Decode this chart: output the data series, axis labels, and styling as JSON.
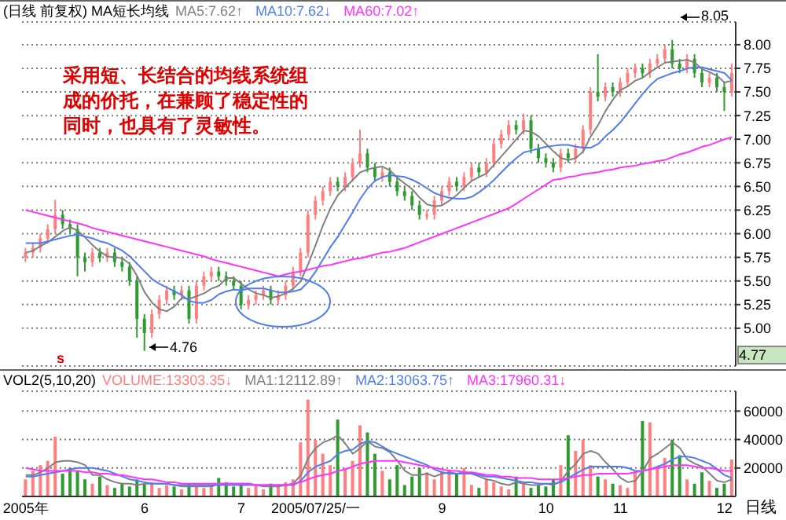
{
  "chart_data": [
    {
      "type": "candlestick",
      "title": "(日线 前复权) MA短长均线",
      "legend": "top",
      "grid": "y",
      "tick_labels": "y",
      "categories": [
        null,
        null,
        null,
        null,
        null,
        null,
        null,
        null,
        null,
        null,
        null,
        null,
        null,
        null,
        null,
        null,
        null,
        null,
        null,
        null,
        null,
        null,
        null,
        null,
        null,
        null,
        null,
        null,
        null,
        null,
        null,
        null,
        null,
        null,
        null,
        null,
        null,
        null,
        null,
        null,
        null,
        null,
        null,
        null,
        null,
        null,
        null,
        null,
        null,
        null,
        null,
        null,
        null,
        null,
        null,
        null,
        null,
        null,
        null,
        null,
        null,
        null,
        null,
        null,
        null,
        null,
        null,
        null,
        null,
        null,
        null,
        null,
        null,
        null,
        null,
        null,
        null,
        null,
        null,
        null,
        null,
        null,
        null,
        null,
        null,
        null,
        null,
        null,
        null,
        null,
        null,
        null,
        null,
        null,
        null,
        null
      ],
      "ohlc": [
        [
          5.75,
          5.85,
          5.7,
          5.8
        ],
        [
          5.8,
          5.9,
          5.75,
          5.85
        ],
        [
          5.85,
          6.0,
          5.8,
          5.95
        ],
        [
          5.95,
          6.1,
          5.9,
          6.05
        ],
        [
          6.05,
          6.36,
          6.0,
          6.2
        ],
        [
          6.2,
          6.25,
          6.05,
          6.1
        ],
        [
          6.1,
          6.15,
          6.0,
          6.05
        ],
        [
          6.05,
          6.1,
          5.55,
          5.75
        ],
        [
          5.75,
          5.8,
          5.6,
          5.7
        ],
        [
          5.7,
          5.85,
          5.65,
          5.8
        ],
        [
          5.8,
          5.85,
          5.7,
          5.75
        ],
        [
          5.75,
          5.85,
          5.7,
          5.8
        ],
        [
          5.8,
          5.85,
          5.65,
          5.7
        ],
        [
          5.7,
          5.75,
          5.6,
          5.65
        ],
        [
          5.65,
          5.7,
          5.45,
          5.5
        ],
        [
          5.5,
          5.55,
          4.9,
          5.1
        ],
        [
          5.1,
          5.15,
          4.76,
          4.95
        ],
        [
          4.95,
          5.2,
          4.9,
          5.15
        ],
        [
          5.15,
          5.35,
          5.1,
          5.3
        ],
        [
          5.3,
          5.45,
          5.25,
          5.4
        ],
        [
          5.4,
          5.45,
          5.3,
          5.35
        ],
        [
          5.35,
          5.45,
          5.3,
          5.4
        ],
        [
          5.4,
          5.45,
          5.05,
          5.1
        ],
        [
          5.1,
          5.5,
          5.05,
          5.45
        ],
        [
          5.45,
          5.6,
          5.4,
          5.55
        ],
        [
          5.55,
          5.65,
          5.5,
          5.6
        ],
        [
          5.6,
          5.65,
          5.5,
          5.55
        ],
        [
          5.55,
          5.6,
          5.45,
          5.5
        ],
        [
          5.5,
          5.55,
          5.4,
          5.45
        ],
        [
          5.45,
          5.5,
          5.2,
          5.25
        ],
        [
          5.25,
          5.35,
          5.2,
          5.3
        ],
        [
          5.3,
          5.4,
          5.25,
          5.35
        ],
        [
          5.35,
          5.45,
          5.3,
          5.4
        ],
        [
          5.4,
          5.45,
          5.25,
          5.3
        ],
        [
          5.3,
          5.4,
          5.25,
          5.35
        ],
        [
          5.35,
          5.5,
          5.3,
          5.45
        ],
        [
          5.45,
          5.65,
          5.4,
          5.6
        ],
        [
          5.6,
          5.85,
          5.55,
          5.8
        ],
        [
          5.8,
          6.25,
          5.75,
          6.2
        ],
        [
          6.2,
          6.4,
          6.15,
          6.35
        ],
        [
          6.35,
          6.5,
          6.3,
          6.45
        ],
        [
          6.45,
          6.6,
          6.4,
          6.55
        ],
        [
          6.55,
          6.6,
          6.45,
          6.5
        ],
        [
          6.5,
          6.65,
          6.45,
          6.6
        ],
        [
          6.6,
          6.8,
          6.55,
          6.75
        ],
        [
          6.75,
          7.1,
          6.7,
          6.85
        ],
        [
          6.85,
          6.9,
          6.65,
          6.7
        ],
        [
          6.7,
          6.75,
          6.55,
          6.6
        ],
        [
          6.6,
          6.7,
          6.55,
          6.65
        ],
        [
          6.65,
          6.7,
          6.5,
          6.55
        ],
        [
          6.55,
          6.6,
          6.4,
          6.45
        ],
        [
          6.45,
          6.5,
          6.35,
          6.4
        ],
        [
          6.4,
          6.45,
          6.25,
          6.3
        ],
        [
          6.3,
          6.35,
          6.15,
          6.2
        ],
        [
          6.2,
          6.25,
          6.15,
          6.2
        ],
        [
          6.2,
          6.4,
          6.15,
          6.35
        ],
        [
          6.35,
          6.5,
          6.3,
          6.45
        ],
        [
          6.45,
          6.6,
          6.4,
          6.55
        ],
        [
          6.55,
          6.6,
          6.45,
          6.5
        ],
        [
          6.5,
          6.65,
          6.45,
          6.6
        ],
        [
          6.6,
          6.75,
          6.55,
          6.7
        ],
        [
          6.7,
          6.75,
          6.6,
          6.65
        ],
        [
          6.65,
          6.8,
          6.6,
          6.75
        ],
        [
          6.75,
          7.0,
          6.7,
          6.95
        ],
        [
          6.95,
          7.1,
          6.9,
          7.05
        ],
        [
          7.05,
          7.2,
          7.0,
          7.15
        ],
        [
          7.15,
          7.2,
          7.05,
          7.1
        ],
        [
          7.1,
          7.27,
          7.05,
          7.2
        ],
        [
          7.2,
          7.25,
          6.85,
          6.9
        ],
        [
          6.9,
          6.95,
          6.75,
          6.8
        ],
        [
          6.8,
          6.85,
          6.7,
          6.75
        ],
        [
          6.75,
          6.8,
          6.65,
          6.7
        ],
        [
          6.7,
          6.9,
          6.65,
          6.85
        ],
        [
          6.85,
          6.9,
          6.75,
          6.8
        ],
        [
          6.8,
          6.95,
          6.75,
          6.9
        ],
        [
          6.9,
          7.15,
          6.85,
          7.1
        ],
        [
          7.1,
          7.55,
          7.05,
          7.5
        ],
        [
          7.5,
          7.9,
          7.4,
          7.45
        ],
        [
          7.45,
          7.6,
          7.4,
          7.55
        ],
        [
          7.55,
          7.6,
          7.45,
          7.5
        ],
        [
          7.5,
          7.65,
          7.45,
          7.6
        ],
        [
          7.6,
          7.75,
          7.55,
          7.7
        ],
        [
          7.7,
          7.8,
          7.65,
          7.75
        ],
        [
          7.75,
          7.8,
          7.65,
          7.7
        ],
        [
          7.7,
          7.85,
          7.65,
          7.8
        ],
        [
          7.8,
          7.9,
          7.75,
          7.85
        ],
        [
          7.85,
          8.0,
          7.8,
          7.95
        ],
        [
          7.95,
          8.05,
          7.75,
          7.8
        ],
        [
          7.8,
          7.85,
          7.7,
          7.75
        ],
        [
          7.75,
          7.9,
          7.7,
          7.85
        ],
        [
          7.85,
          7.9,
          7.65,
          7.7
        ],
        [
          7.7,
          7.75,
          7.55,
          7.6
        ],
        [
          7.6,
          7.7,
          7.55,
          7.65
        ],
        [
          7.65,
          7.7,
          7.5,
          7.55
        ],
        [
          7.55,
          7.6,
          7.3,
          7.5
        ],
        [
          7.5,
          7.8,
          7.45,
          7.7
        ]
      ],
      "colors": [
        "#ff7f7f",
        "#ff7f7f",
        "#ff7f7f",
        "#ff7f7f",
        "#ff7f7f",
        "#2e9b2e",
        "#2e9b2e",
        "#2e9b2e",
        "#2e9b2e",
        "#ff7f7f",
        "#2e9b2e",
        "#ff7f7f",
        "#2e9b2e",
        "#2e9b2e",
        "#2e9b2e",
        "#2e9b2e",
        "#2e9b2e",
        "#ff7f7f",
        "#ff7f7f",
        "#ff7f7f",
        "#2e9b2e",
        "#ff7f7f",
        "#2e9b2e",
        "#ff7f7f",
        "#ff7f7f",
        "#ff7f7f",
        "#2e9b2e",
        "#2e9b2e",
        "#2e9b2e",
        "#2e9b2e",
        "#ff7f7f",
        "#ff7f7f",
        "#ff7f7f",
        "#2e9b2e",
        "#ff7f7f",
        "#ff7f7f",
        "#ff7f7f",
        "#ff7f7f",
        "#ff7f7f",
        "#ff7f7f",
        "#ff7f7f",
        "#ff7f7f",
        "#2e9b2e",
        "#ff7f7f",
        "#ff7f7f",
        "#ff7f7f",
        "#2e9b2e",
        "#2e9b2e",
        "#ff7f7f",
        "#2e9b2e",
        "#2e9b2e",
        "#2e9b2e",
        "#2e9b2e",
        "#2e9b2e",
        "#ff7f7f",
        "#ff7f7f",
        "#ff7f7f",
        "#ff7f7f",
        "#2e9b2e",
        "#ff7f7f",
        "#ff7f7f",
        "#2e9b2e",
        "#ff7f7f",
        "#ff7f7f",
        "#ff7f7f",
        "#ff7f7f",
        "#2e9b2e",
        "#ff7f7f",
        "#2e9b2e",
        "#2e9b2e",
        "#2e9b2e",
        "#2e9b2e",
        "#ff7f7f",
        "#2e9b2e",
        "#ff7f7f",
        "#ff7f7f",
        "#ff7f7f",
        "#2e9b2e",
        "#ff7f7f",
        "#2e9b2e",
        "#ff7f7f",
        "#ff7f7f",
        "#ff7f7f",
        "#2e9b2e",
        "#ff7f7f",
        "#ff7f7f",
        "#ff7f7f",
        "#2e9b2e",
        "#2e9b2e",
        "#ff7f7f",
        "#2e9b2e",
        "#2e9b2e",
        "#ff7f7f",
        "#2e9b2e",
        "#2e9b2e",
        "#ff7f7f"
      ],
      "series": [
        {
          "type": "line",
          "name": "MA5:7.62↑",
          "color": "#808080",
          "values": [
            5.8,
            5.82,
            5.87,
            5.91,
            5.97,
            6.03,
            6.07,
            6.03,
            5.96,
            5.88,
            5.81,
            5.76,
            5.75,
            5.74,
            5.68,
            5.55,
            5.38,
            5.27,
            5.2,
            5.18,
            5.23,
            5.32,
            5.31,
            5.34,
            5.37,
            5.42,
            5.45,
            5.53,
            5.53,
            5.47,
            5.41,
            5.37,
            5.35,
            5.32,
            5.34,
            5.37,
            5.42,
            5.5,
            5.68,
            5.88,
            6.09,
            6.27,
            6.41,
            6.49,
            6.57,
            6.65,
            6.68,
            6.7,
            6.71,
            6.67,
            6.59,
            6.53,
            6.47,
            6.38,
            6.31,
            6.29,
            6.3,
            6.35,
            6.41,
            6.49,
            6.56,
            6.6,
            6.64,
            6.73,
            6.82,
            6.91,
            7.0,
            7.09,
            7.08,
            7.03,
            6.95,
            6.87,
            6.8,
            6.78,
            6.8,
            6.87,
            7.03,
            7.15,
            7.3,
            7.42,
            7.52,
            7.56,
            7.62,
            7.65,
            7.71,
            7.76,
            7.81,
            7.82,
            7.83,
            7.84,
            7.81,
            7.74,
            7.71,
            7.67,
            7.6,
            7.62
          ]
        },
        {
          "type": "line",
          "name": "MA10:7.62↓",
          "color": "#4f7df0",
          "values": [
            5.9,
            5.9,
            5.9,
            5.92,
            5.94,
            5.96,
            5.98,
            5.99,
            5.97,
            5.95,
            5.92,
            5.9,
            5.86,
            5.82,
            5.76,
            5.68,
            5.6,
            5.52,
            5.47,
            5.43,
            5.39,
            5.35,
            5.29,
            5.27,
            5.27,
            5.3,
            5.36,
            5.39,
            5.41,
            5.4,
            5.42,
            5.42,
            5.42,
            5.4,
            5.38,
            5.38,
            5.39,
            5.41,
            5.49,
            5.6,
            5.73,
            5.86,
            5.97,
            6.1,
            6.23,
            6.37,
            6.48,
            6.56,
            6.6,
            6.62,
            6.61,
            6.6,
            6.57,
            6.53,
            6.48,
            6.43,
            6.4,
            6.38,
            6.37,
            6.37,
            6.39,
            6.44,
            6.5,
            6.57,
            6.65,
            6.73,
            6.8,
            6.86,
            6.88,
            6.9,
            6.92,
            6.93,
            6.94,
            6.94,
            6.92,
            6.91,
            6.91,
            6.95,
            7.03,
            7.1,
            7.18,
            7.28,
            7.38,
            7.48,
            7.57,
            7.64,
            7.67,
            7.7,
            7.72,
            7.75,
            7.76,
            7.76,
            7.74,
            7.72,
            7.7,
            7.62
          ]
        },
        {
          "type": "line",
          "name": "MA60:7.02↑",
          "color": "#ff33ff",
          "values": [
            6.25,
            6.23,
            6.21,
            6.19,
            6.17,
            6.15,
            6.13,
            6.11,
            6.09,
            6.06,
            6.04,
            6.02,
            6.0,
            5.98,
            5.96,
            5.94,
            5.92,
            5.9,
            5.88,
            5.86,
            5.84,
            5.82,
            5.8,
            5.78,
            5.76,
            5.73,
            5.71,
            5.69,
            5.67,
            5.65,
            5.63,
            5.61,
            5.59,
            5.57,
            5.55,
            5.57,
            5.59,
            5.6,
            5.62,
            5.64,
            5.66,
            5.67,
            5.69,
            5.71,
            5.73,
            5.74,
            5.76,
            5.78,
            5.8,
            5.81,
            5.83,
            5.85,
            5.88,
            5.91,
            5.94,
            5.97,
            6.0,
            6.03,
            6.06,
            6.09,
            6.12,
            6.15,
            6.18,
            6.21,
            6.24,
            6.27,
            6.32,
            6.37,
            6.42,
            6.47,
            6.52,
            6.57,
            6.58,
            6.6,
            6.61,
            6.63,
            6.64,
            6.65,
            6.67,
            6.68,
            6.7,
            6.71,
            6.72,
            6.74,
            6.75,
            6.77,
            6.78,
            6.81,
            6.84,
            6.86,
            6.89,
            6.92,
            6.94,
            6.97,
            7.0,
            7.02
          ]
        }
      ],
      "ylim": [
        4.6,
        8.24
      ],
      "yticks": [
        {
          "value": 5,
          "label": "5.00"
        },
        {
          "value": 5.25,
          "label": "5.25"
        },
        {
          "value": 5.5,
          "label": "5.50"
        },
        {
          "value": 5.75,
          "label": "5.75"
        },
        {
          "value": 6,
          "label": "6.00"
        },
        {
          "value": 6.25,
          "label": "6.25"
        },
        {
          "value": 6.5,
          "label": "6.50"
        },
        {
          "value": 6.75,
          "label": "6.75"
        },
        {
          "value": 7,
          "label": "7.00"
        },
        {
          "value": 7.25,
          "label": "7.25"
        },
        {
          "value": 7.5,
          "label": "7.50"
        },
        {
          "value": 7.75,
          "label": "7.75"
        },
        {
          "value": 8,
          "label": "8.00"
        }
      ],
      "annotations": [
        "采用短、长结合的均线系统组成的价托，在兼顾了稳定性的同时，也具有了灵敏性。",
        "8.05",
        "4.76",
        "4.77",
        "s"
      ]
    },
    {
      "type": "bar",
      "title": "VOL2(5,10,20)",
      "legend": "top",
      "grid": "y",
      "categories": [
        "2005年",
        null,
        null,
        null,
        null,
        null,
        null,
        null,
        null,
        null,
        null,
        null,
        null,
        null,
        null,
        null,
        "6",
        null,
        null,
        null,
        null,
        null,
        null,
        null,
        null,
        null,
        null,
        null,
        null,
        "7",
        null,
        null,
        null,
        null,
        null,
        null,
        null,
        null,
        null,
        "2005/07/25/一",
        null,
        null,
        null,
        null,
        null,
        null,
        null,
        null,
        null,
        null,
        null,
        null,
        null,
        null,
        null,
        null,
        "9",
        null,
        null,
        null,
        null,
        null,
        null,
        null,
        null,
        null,
        null,
        null,
        null,
        null,
        "10",
        null,
        null,
        null,
        null,
        null,
        null,
        null,
        null,
        null,
        "11",
        null,
        null,
        null,
        null,
        null,
        null,
        null,
        null,
        null,
        null,
        null,
        null,
        null,
        "12",
        null
      ],
      "series": [
        {
          "type": "bar",
          "name": "VOLUME:13303.35↓",
          "color": "#ff7f7f",
          "values": [
            12000,
            18000,
            22000,
            25000,
            42000,
            16000,
            20000,
            18000,
            12000,
            9000,
            14000,
            8000,
            6000,
            9000,
            7000,
            12000,
            9000,
            10000,
            6000,
            8000,
            7000,
            5000,
            9000,
            7000,
            6000,
            8000,
            13000,
            10000,
            7000,
            9000,
            6000,
            8000,
            5000,
            9000,
            7000,
            10000,
            12000,
            38000,
            68000,
            40000,
            30000,
            22000,
            54000,
            20000,
            25000,
            50000,
            45000,
            30000,
            18000,
            12000,
            22000,
            8000,
            14000,
            20000,
            17000,
            12000,
            18000,
            19000,
            16000,
            20000,
            8000,
            6000,
            12000,
            10000,
            7000,
            5000,
            14000,
            9000,
            6000,
            8000,
            7000,
            12000,
            22000,
            43000,
            32000,
            40000,
            22000,
            14000,
            12000,
            9000,
            8000,
            6000,
            18000,
            53000,
            52000,
            20000,
            27000,
            40000,
            29000,
            12000,
            9000,
            17000,
            11000,
            6000,
            9000,
            26000
          ],
          "colors": [
            "#ff7f7f",
            "#ff7f7f",
            "#ff7f7f",
            "#ff7f7f",
            "#ff7f7f",
            "#2e9b2e",
            "#2e9b2e",
            "#2e9b2e",
            "#2e9b2e",
            "#ff7f7f",
            "#2e9b2e",
            "#ff7f7f",
            "#2e9b2e",
            "#2e9b2e",
            "#2e9b2e",
            "#2e9b2e",
            "#2e9b2e",
            "#ff7f7f",
            "#ff7f7f",
            "#ff7f7f",
            "#2e9b2e",
            "#ff7f7f",
            "#2e9b2e",
            "#ff7f7f",
            "#ff7f7f",
            "#ff7f7f",
            "#2e9b2e",
            "#2e9b2e",
            "#2e9b2e",
            "#2e9b2e",
            "#ff7f7f",
            "#ff7f7f",
            "#ff7f7f",
            "#2e9b2e",
            "#ff7f7f",
            "#ff7f7f",
            "#ff7f7f",
            "#ff7f7f",
            "#ff7f7f",
            "#ff7f7f",
            "#ff7f7f",
            "#ff7f7f",
            "#2e9b2e",
            "#ff7f7f",
            "#ff7f7f",
            "#ff7f7f",
            "#2e9b2e",
            "#2e9b2e",
            "#ff7f7f",
            "#2e9b2e",
            "#2e9b2e",
            "#2e9b2e",
            "#2e9b2e",
            "#2e9b2e",
            "#ff7f7f",
            "#ff7f7f",
            "#ff7f7f",
            "#ff7f7f",
            "#2e9b2e",
            "#ff7f7f",
            "#ff7f7f",
            "#2e9b2e",
            "#ff7f7f",
            "#ff7f7f",
            "#ff7f7f",
            "#ff7f7f",
            "#2e9b2e",
            "#ff7f7f",
            "#2e9b2e",
            "#2e9b2e",
            "#2e9b2e",
            "#2e9b2e",
            "#ff7f7f",
            "#2e9b2e",
            "#ff7f7f",
            "#ff7f7f",
            "#ff7f7f",
            "#2e9b2e",
            "#ff7f7f",
            "#2e9b2e",
            "#ff7f7f",
            "#ff7f7f",
            "#ff7f7f",
            "#2e9b2e",
            "#ff7f7f",
            "#ff7f7f",
            "#ff7f7f",
            "#2e9b2e",
            "#2e9b2e",
            "#ff7f7f",
            "#2e9b2e",
            "#2e9b2e",
            "#ff7f7f",
            "#2e9b2e",
            "#2e9b2e",
            "#ff7f7f"
          ]
        },
        {
          "type": "line",
          "name": "MA1:12112.89↑",
          "color": "#808080",
          "values": [
            15000,
            15000,
            17000,
            20000,
            24000,
            25000,
            25000,
            24000,
            22000,
            15000,
            15000,
            12000,
            10000,
            9000,
            9000,
            8000,
            9000,
            9000,
            9000,
            9000,
            8000,
            7000,
            7000,
            7000,
            7000,
            7000,
            9000,
            9000,
            9000,
            9000,
            9000,
            8000,
            7000,
            7000,
            7000,
            8000,
            9000,
            15000,
            27000,
            34000,
            38000,
            40000,
            43000,
            37000,
            30000,
            34000,
            39000,
            35000,
            34000,
            31000,
            25000,
            18000,
            15000,
            15000,
            16000,
            14000,
            16000,
            17000,
            16000,
            17000,
            16000,
            14000,
            12000,
            11000,
            9000,
            8000,
            10000,
            9000,
            8000,
            8000,
            9000,
            8000,
            11000,
            18000,
            23000,
            30000,
            32000,
            30000,
            24000,
            19000,
            13000,
            10000,
            11000,
            18000,
            27000,
            30000,
            34000,
            38000,
            34000,
            26000,
            23000,
            21000,
            16000,
            11000,
            10000,
            12000
          ]
        },
        {
          "type": "line",
          "name": "MA2:13063.75↑",
          "color": "#4f7df0",
          "values": [
            14000,
            14000,
            15000,
            16000,
            17000,
            18000,
            19000,
            20000,
            20000,
            20000,
            19000,
            18000,
            16000,
            14000,
            12000,
            11000,
            10000,
            9000,
            9000,
            9000,
            8000,
            8000,
            8000,
            8000,
            8000,
            8000,
            8000,
            8000,
            8000,
            8000,
            8000,
            8000,
            8000,
            8000,
            8000,
            8000,
            8000,
            11000,
            17000,
            21000,
            23000,
            25000,
            30000,
            32000,
            33000,
            37000,
            39000,
            38000,
            35000,
            32000,
            30000,
            28000,
            26000,
            24000,
            22000,
            19000,
            17000,
            16000,
            16000,
            16000,
            16000,
            15000,
            14000,
            14000,
            13000,
            12000,
            11000,
            10000,
            10000,
            9000,
            9000,
            9000,
            10000,
            13000,
            16000,
            19000,
            21000,
            21000,
            21000,
            21000,
            21000,
            20000,
            18000,
            18000,
            19000,
            21000,
            23000,
            26000,
            28000,
            28000,
            27000,
            25000,
            23000,
            19000,
            15000,
            13000
          ]
        },
        {
          "type": "line",
          "name": "MA3:17960.31↓",
          "color": "#ff33ff",
          "values": [
            20000,
            19000,
            18000,
            18000,
            18000,
            18000,
            18000,
            18000,
            17000,
            17000,
            16000,
            16000,
            15000,
            15000,
            14000,
            13000,
            12000,
            12000,
            11000,
            10000,
            10000,
            9000,
            9000,
            9000,
            9000,
            9000,
            9000,
            9000,
            9000,
            9000,
            9000,
            8000,
            8000,
            8000,
            8000,
            8000,
            9000,
            10000,
            12000,
            14000,
            15000,
            16000,
            18000,
            19000,
            21000,
            23000,
            24000,
            25000,
            25000,
            25000,
            25000,
            24000,
            23000,
            22000,
            21000,
            20000,
            19000,
            18000,
            18000,
            17000,
            17000,
            16000,
            15000,
            15000,
            14000,
            14000,
            13000,
            13000,
            13000,
            12000,
            12000,
            12000,
            12000,
            13000,
            14000,
            15000,
            15000,
            16000,
            16000,
            16000,
            16000,
            16000,
            17000,
            18000,
            19000,
            20000,
            21000,
            22000,
            22000,
            22000,
            21000,
            20000,
            20000,
            19000,
            18000,
            18000
          ]
        }
      ],
      "ylim": [
        0,
        74000
      ],
      "yticks": [
        20000,
        40000,
        60000
      ],
      "annotations": [
        "日线"
      ]
    }
  ]
}
